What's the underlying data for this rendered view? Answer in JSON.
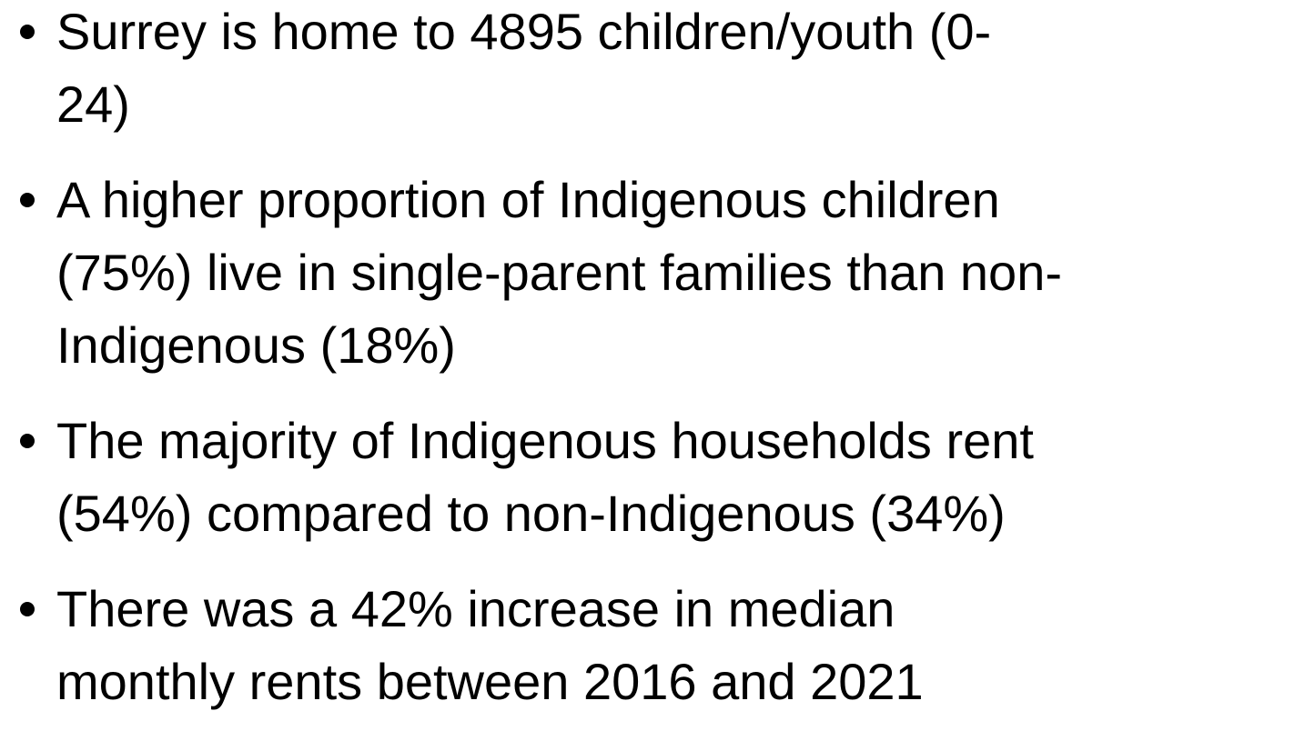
{
  "bullets": [
    {
      "lines": [
        "Surrey is home to 4895 children/youth (0-",
        "24)"
      ]
    },
    {
      "lines": [
        "A higher proportion of Indigenous children",
        "(75%) live in single-parent families than non-",
        "Indigenous (18%)"
      ]
    },
    {
      "lines": [
        "The majority of Indigenous households rent",
        "(54%) compared to non-Indigenous (34%)"
      ]
    },
    {
      "lines": [
        "There was a 42% increase in median",
        "monthly rents between 2016 and 2021"
      ]
    }
  ]
}
